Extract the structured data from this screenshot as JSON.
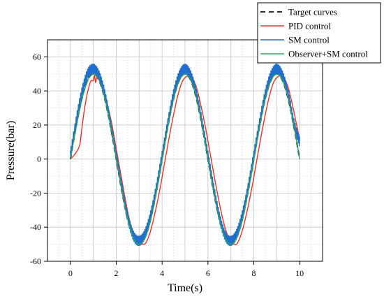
{
  "chart_data": {
    "type": "line",
    "xlabel": "Time(s)",
    "ylabel": "Pressure(bar)",
    "xlim": [
      -1,
      11
    ],
    "ylim": [
      -60,
      70
    ],
    "xticks": [
      0,
      2,
      4,
      6,
      8,
      10
    ],
    "yticks": [
      -60,
      -40,
      -20,
      0,
      20,
      40,
      60
    ],
    "grid": true,
    "legend_position": "top-right",
    "series": [
      {
        "name": "Target curves",
        "color": "#333333",
        "style": "dashed",
        "x": [
          0,
          0.25,
          0.5,
          0.75,
          1,
          1.25,
          1.5,
          1.75,
          2,
          2.25,
          2.5,
          2.75,
          3,
          3.25,
          3.5,
          3.75,
          4,
          4.25,
          4.5,
          4.75,
          5,
          5.25,
          5.5,
          5.75,
          6,
          6.25,
          6.5,
          6.75,
          7,
          7.25,
          7.5,
          7.75,
          8,
          8.25,
          8.5,
          8.75,
          9,
          9.25,
          9.5,
          9.75,
          10
        ],
        "values": [
          0,
          19.1,
          35.4,
          46.2,
          50,
          46.2,
          35.4,
          19.1,
          0,
          -19.1,
          -35.4,
          -46.2,
          -50,
          -46.2,
          -35.4,
          -19.1,
          0,
          19.1,
          35.4,
          46.2,
          50,
          46.2,
          35.4,
          19.1,
          0,
          -19.1,
          -35.4,
          -46.2,
          -50,
          -46.2,
          -35.4,
          -19.1,
          0,
          19.1,
          35.4,
          46.2,
          50,
          46.2,
          35.4,
          19.1,
          0
        ]
      },
      {
        "name": "PID control",
        "color": "#e8312a",
        "style": "solid",
        "x": [
          0,
          0.2,
          0.4,
          0.5,
          0.6,
          0.7,
          0.8,
          0.9,
          1.0,
          1.05,
          1.1,
          1.15,
          1.2,
          1.3,
          1.45,
          1.6,
          1.8,
          2.0,
          2.2,
          2.4,
          2.6,
          2.8,
          3.0,
          3.15,
          3.3,
          3.5,
          3.7,
          3.9,
          4.1,
          4.3,
          4.5,
          4.7,
          4.9,
          5.15,
          5.3,
          5.5,
          5.7,
          5.9,
          6.1,
          6.3,
          6.5,
          6.7,
          6.9,
          7.15,
          7.3,
          7.5,
          7.7,
          7.9,
          8.1,
          8.3,
          8.5,
          8.7,
          8.9,
          9.15,
          9.3,
          9.5,
          9.7,
          9.9,
          10
        ],
        "values": [
          0,
          3,
          8,
          18,
          28,
          36,
          42,
          46,
          46,
          49,
          45,
          48,
          47,
          46,
          41,
          33,
          21,
          6,
          -9,
          -24,
          -37,
          -45,
          -49,
          -50,
          -49,
          -42,
          -31,
          -18,
          -3,
          12,
          26,
          38,
          46,
          49,
          48,
          42,
          31,
          18,
          3,
          -12,
          -26,
          -38,
          -46,
          -50,
          -49,
          -42,
          -31,
          -18,
          -3,
          12,
          26,
          38,
          46,
          49,
          48,
          42,
          31,
          18,
          12
        ]
      },
      {
        "name": "SM control",
        "color": "#1f6fd1",
        "style": "solid",
        "x": [
          0,
          0.25,
          0.5,
          0.75,
          1.0,
          1.25,
          1.5,
          1.75,
          2.0,
          2.25,
          2.5,
          2.75,
          3.0,
          3.25,
          3.5,
          3.75,
          4.0,
          4.25,
          4.5,
          4.75,
          5.0,
          5.25,
          5.5,
          5.75,
          6.0,
          6.25,
          6.5,
          6.75,
          7.0,
          7.25,
          7.5,
          7.75,
          8.0,
          8.25,
          8.5,
          8.75,
          9.0,
          9.25,
          9.5,
          9.75,
          10
        ],
        "values": [
          2,
          22,
          39,
          50,
          53,
          49,
          38,
          21,
          2,
          -17,
          -34,
          -45,
          -48,
          -44,
          -33,
          -17,
          2,
          21,
          38,
          49,
          53,
          49,
          38,
          21,
          2,
          -17,
          -34,
          -45,
          -48,
          -44,
          -33,
          -17,
          2,
          21,
          38,
          49,
          53,
          49,
          38,
          21,
          10
        ],
        "ripple_amplitude": 3
      },
      {
        "name": "Observer+SM control",
        "color": "#2ca25f",
        "style": "solid",
        "x": [
          0,
          0.25,
          0.5,
          0.75,
          1.0,
          1.25,
          1.5,
          1.75,
          2.0,
          2.25,
          2.5,
          2.75,
          3.0,
          3.25,
          3.5,
          3.75,
          4.0,
          4.25,
          4.5,
          4.75,
          5.0,
          5.25,
          5.5,
          5.75,
          6.0,
          6.25,
          6.5,
          6.75,
          7.0,
          7.25,
          7.5,
          7.75,
          8.0,
          8.25,
          8.5,
          8.75,
          9.0,
          9.25,
          9.5,
          9.75,
          10
        ],
        "values": [
          0,
          18.5,
          34.8,
          45.8,
          49.8,
          46.4,
          35.8,
          19.6,
          0.5,
          -18.8,
          -35.2,
          -46.3,
          -50,
          -46.5,
          -35.8,
          -19.6,
          -0.5,
          18.8,
          35.2,
          46.0,
          49.8,
          46.4,
          35.8,
          19.6,
          0.5,
          -18.8,
          -35.2,
          -46.3,
          -50,
          -46.5,
          -35.8,
          -19.6,
          -0.5,
          18.8,
          35.2,
          46.0,
          49.8,
          46.4,
          35.8,
          19.6,
          0
        ]
      }
    ]
  }
}
